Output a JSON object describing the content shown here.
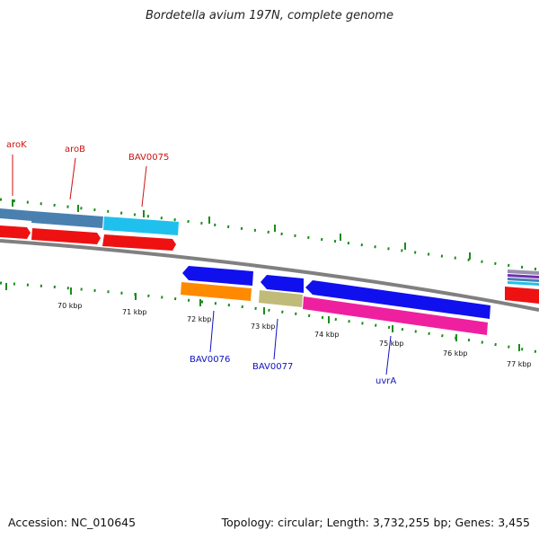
{
  "title": "Bordetella avium 197N, complete genome",
  "footer": {
    "accession": "Accession: NC_010645",
    "summary": "Topology: circular; Length: 3,732,255 bp; Genes: 3,455"
  },
  "ticks": [
    "70 kbp",
    "71 kbp",
    "72 kbp",
    "73 kbp",
    "74 kbp",
    "75 kbp",
    "76 kbp",
    "77 kbp"
  ],
  "genes_top": [
    "aroK",
    "aroB",
    "BAV0075"
  ],
  "genes_bottom": [
    "BAV0076",
    "BAV0077",
    "uvrA"
  ],
  "colors": {
    "forward_red": "#ee1111",
    "steel_blue": "#4a80b0",
    "cyan": "#20c0ee",
    "blue": "#1010ee",
    "orange": "#ff8a00",
    "khaki": "#c0bb78",
    "pink": "#ee20a0",
    "tick_green": "#1a8c1a",
    "backbone": "#808080"
  }
}
